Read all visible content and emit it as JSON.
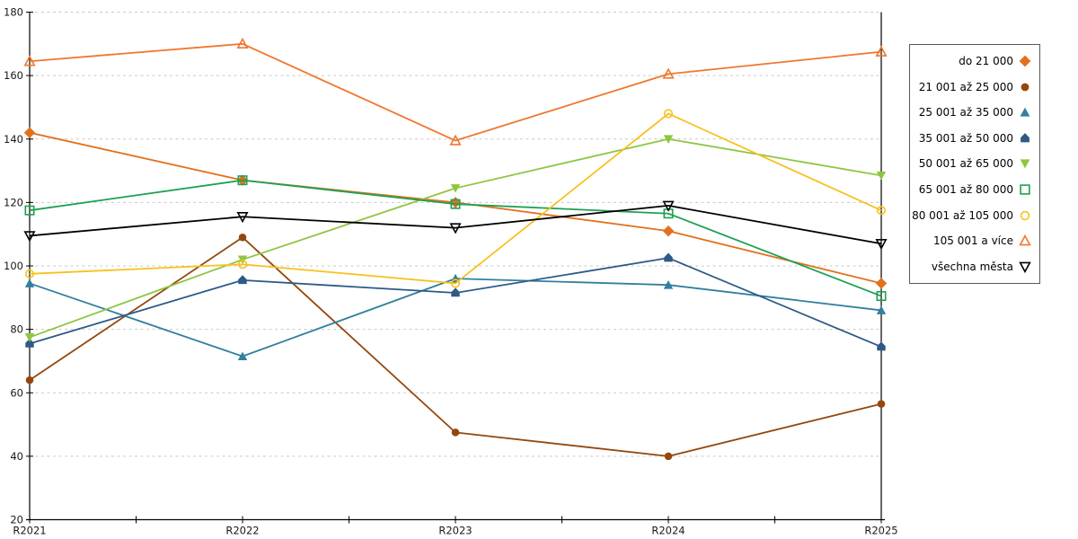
{
  "chart_data": {
    "type": "line",
    "title": "",
    "xlabel": "",
    "ylabel": "",
    "categories": [
      "R2021",
      "R2022",
      "R2023",
      "R2024",
      "R2025"
    ],
    "ylim": [
      20,
      180
    ],
    "ytick_step": 20,
    "grid": "horizontal-dashed",
    "legend_position": "right",
    "series": [
      {
        "name": "do 21 000",
        "color": "#E2711D",
        "marker": "diamond",
        "fill": "filled",
        "values": [
          142,
          127,
          120,
          111,
          94.5
        ]
      },
      {
        "name": "21 001 až 25 000",
        "color": "#94470E",
        "marker": "circle",
        "fill": "filled",
        "values": [
          64,
          109,
          47.5,
          40,
          56.5
        ]
      },
      {
        "name": "25 001 až 35 000",
        "color": "#31809E",
        "marker": "triangle",
        "fill": "filled",
        "values": [
          94.5,
          71.5,
          96,
          94,
          86
        ]
      },
      {
        "name": "35 001 až 50 000",
        "color": "#2D5A87",
        "marker": "pentagon",
        "fill": "filled",
        "values": [
          75.5,
          95.5,
          91.5,
          102.5,
          74.5
        ]
      },
      {
        "name": "50 001 až 65 000",
        "color": "#8EC641",
        "marker": "triangle-down",
        "fill": "filled",
        "values": [
          77.5,
          102,
          124.5,
          140,
          128.5
        ]
      },
      {
        "name": "65 001 až 80 000",
        "color": "#1CA152",
        "marker": "square",
        "fill": "open",
        "values": [
          117.5,
          127,
          119.5,
          116.5,
          90.5
        ]
      },
      {
        "name": "80 001 až 105 000",
        "color": "#F7C11E",
        "marker": "circle",
        "fill": "open",
        "values": [
          97.5,
          100.5,
          94.5,
          148,
          117.5
        ]
      },
      {
        "name": "105 001 a více",
        "color": "#F1762D",
        "marker": "triangle",
        "fill": "open",
        "values": [
          164.5,
          170,
          139.5,
          160.5,
          167.5
        ]
      },
      {
        "name": "všechna města",
        "color": "#000000",
        "marker": "triangle-down",
        "fill": "open",
        "values": [
          109.5,
          115.5,
          112,
          119,
          107
        ]
      }
    ]
  },
  "axes": {
    "y_tick_labels": [
      "20",
      "40",
      "60",
      "80",
      "100",
      "120",
      "140",
      "160",
      "180"
    ],
    "x_tick_labels": [
      "R2021",
      "R2022",
      "R2023",
      "R2024",
      "R2025"
    ]
  },
  "colors": {
    "gridline": "#C9C9C9",
    "axis": "#000000",
    "tick_label": "#1A1A1A",
    "legend_border": "#595959"
  }
}
